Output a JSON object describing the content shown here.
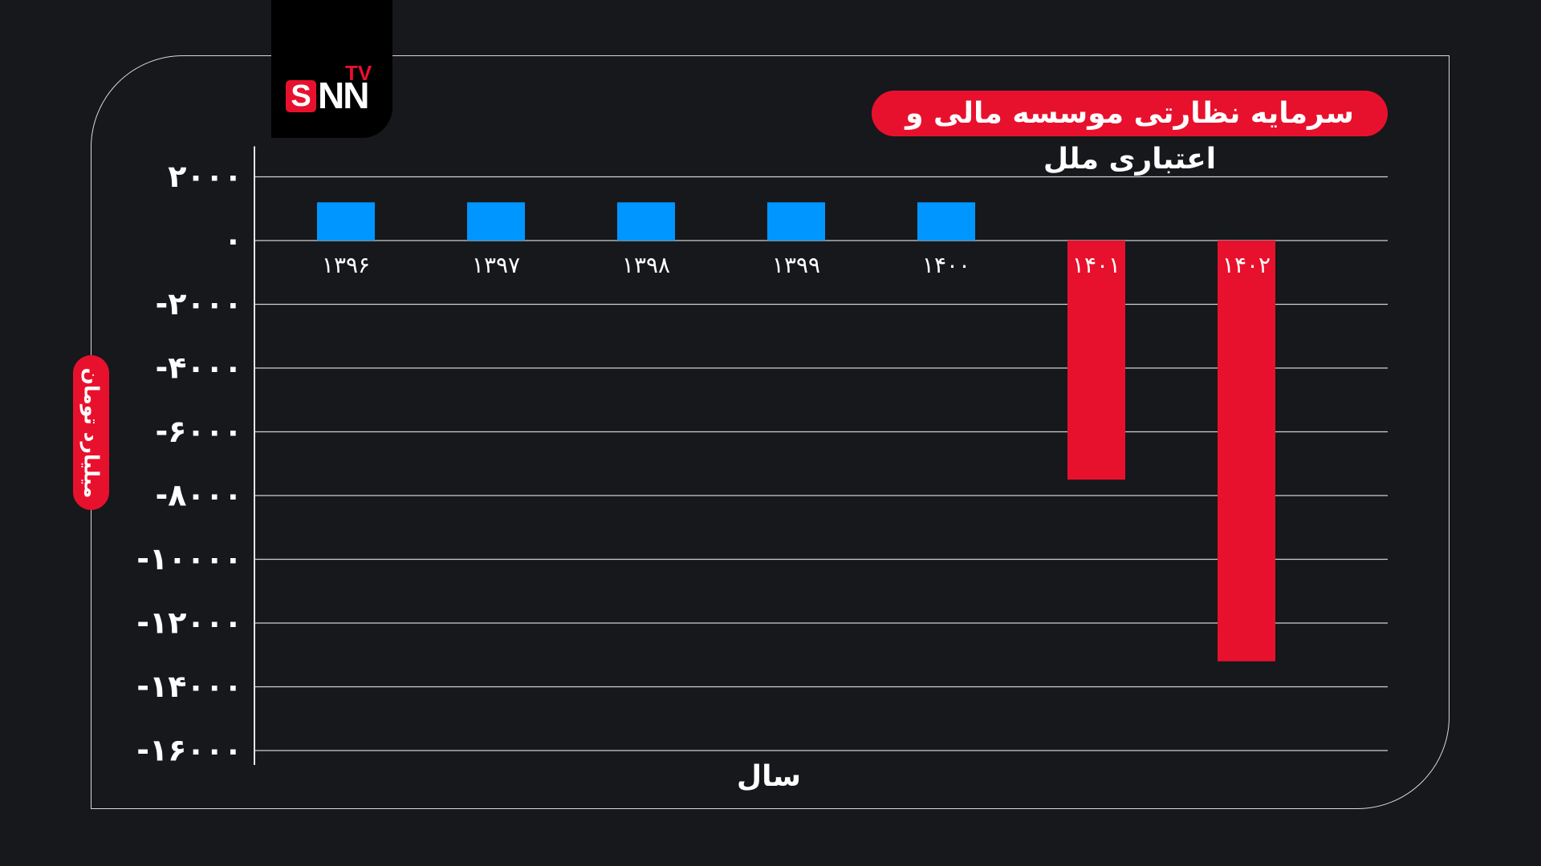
{
  "logo": {
    "s": "S",
    "nn": "NN",
    "tv": "TV"
  },
  "chart_data": {
    "type": "bar",
    "title": "سرمایه نظارتی موسسه مالی و اعتباری ملل",
    "xlabel": "سال",
    "ylabel": "میلیارد تومان",
    "categories": [
      "۱۳۹۶",
      "۱۳۹۷",
      "۱۳۹۸",
      "۱۳۹۹",
      "۱۴۰۰",
      "۱۴۰۱",
      "۱۴۰۲"
    ],
    "values": [
      1200,
      1200,
      1200,
      1200,
      1200,
      -7500,
      -13200
    ],
    "ylim": [
      -16000,
      2000
    ],
    "yticks": [
      2000,
      0,
      -2000,
      -4000,
      -6000,
      -8000,
      -10000,
      -12000,
      -14000,
      -16000
    ],
    "ytick_labels": [
      "۲۰۰۰",
      "۰",
      "-۲۰۰۰",
      "-۴۰۰۰",
      "-۶۰۰۰",
      "-۸۰۰۰",
      "-۱۰۰۰۰",
      "-۱۲۰۰۰",
      "-۱۴۰۰۰",
      "-۱۶۰۰۰"
    ],
    "grid": true,
    "colors": {
      "positive": "#0096ff",
      "negative": "#e8112d",
      "grid": "#d0d0d0"
    }
  }
}
